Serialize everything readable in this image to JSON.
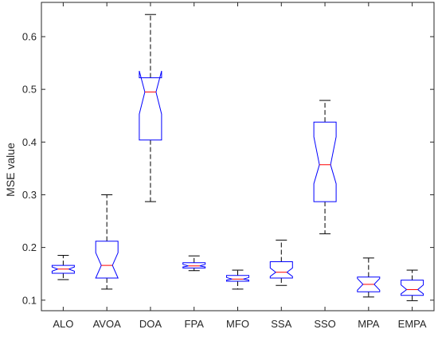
{
  "chart_data": {
    "type": "box",
    "title": "",
    "xlabel": "",
    "ylabel": "MSE value",
    "ylim": [
      0.08,
      0.665
    ],
    "yticks": [
      0.1,
      0.2,
      0.3,
      0.4,
      0.5,
      0.6
    ],
    "ytick_labels": [
      "0.1",
      "0.2",
      "0.3",
      "0.4",
      "0.5",
      "0.6"
    ],
    "grid": false,
    "notched": true,
    "categories": [
      "ALO",
      "AVOA",
      "DOA",
      "FPA",
      "MFO",
      "SSA",
      "SSO",
      "MPA",
      "EMPA"
    ],
    "boxes": [
      {
        "min": 0.139,
        "q1": 0.151,
        "median": 0.159,
        "q3": 0.166,
        "max": 0.185,
        "notch_lo": 0.155,
        "notch_hi": 0.163
      },
      {
        "min": 0.121,
        "q1": 0.142,
        "median": 0.166,
        "q3": 0.212,
        "max": 0.3,
        "notch_lo": 0.142,
        "notch_hi": 0.19
      },
      {
        "min": 0.287,
        "q1": 0.404,
        "median": 0.495,
        "q3": 0.522,
        "max": 0.642,
        "notch_lo": 0.453,
        "notch_hi": 0.535
      },
      {
        "min": 0.156,
        "q1": 0.161,
        "median": 0.165,
        "q3": 0.171,
        "max": 0.184,
        "notch_lo": 0.163,
        "notch_hi": 0.168
      },
      {
        "min": 0.121,
        "q1": 0.136,
        "median": 0.14,
        "q3": 0.147,
        "max": 0.157,
        "notch_lo": 0.138,
        "notch_hi": 0.143
      },
      {
        "min": 0.128,
        "q1": 0.142,
        "median": 0.153,
        "q3": 0.173,
        "max": 0.214,
        "notch_lo": 0.145,
        "notch_hi": 0.161
      },
      {
        "min": 0.226,
        "q1": 0.287,
        "median": 0.357,
        "q3": 0.438,
        "max": 0.479,
        "notch_lo": 0.321,
        "notch_hi": 0.41
      },
      {
        "min": 0.106,
        "q1": 0.116,
        "median": 0.13,
        "q3": 0.144,
        "max": 0.18,
        "notch_lo": 0.119,
        "notch_hi": 0.141
      },
      {
        "min": 0.099,
        "q1": 0.109,
        "median": 0.12,
        "q3": 0.138,
        "max": 0.157,
        "notch_lo": 0.112,
        "notch_hi": 0.129
      }
    ],
    "colors": {
      "box": "#0000ff",
      "median": "#ff0000",
      "whisker": "#000000",
      "axes": "#262626"
    }
  }
}
